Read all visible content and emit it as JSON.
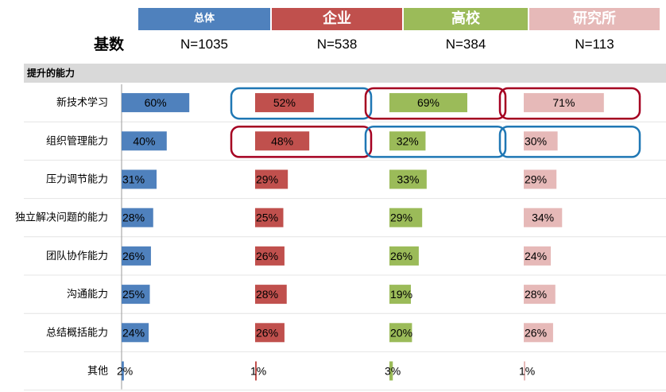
{
  "chart_data": {
    "type": "bar",
    "title": "",
    "section_label": "提升的能力",
    "base_label": "基数",
    "groups": [
      {
        "name": "总体",
        "n": "N=1035",
        "color": "#4f81bd"
      },
      {
        "name": "企业",
        "n": "N=538",
        "color": "#c0504d"
      },
      {
        "name": "高校",
        "n": "N=384",
        "color": "#9bbb59"
      },
      {
        "name": "研究所",
        "n": "N=113",
        "color": "#e6b9b8"
      }
    ],
    "categories": [
      "新技术学习",
      "组织管理能力",
      "压力调节能力",
      "独立解决问题的能力",
      "团队协作能力",
      "沟通能力",
      "总结概括能力",
      "其他"
    ],
    "series": [
      {
        "name": "总体",
        "values": [
          60,
          40,
          31,
          28,
          26,
          25,
          24,
          2
        ]
      },
      {
        "name": "企业",
        "values": [
          52,
          48,
          29,
          25,
          26,
          28,
          26,
          1
        ]
      },
      {
        "name": "高校",
        "values": [
          69,
          32,
          33,
          29,
          26,
          19,
          20,
          3
        ]
      },
      {
        "name": "研究所",
        "values": [
          71,
          30,
          29,
          34,
          24,
          28,
          26,
          1
        ]
      }
    ],
    "value_labels": [
      [
        "60%",
        "40%",
        "31%",
        "28%",
        "26%",
        "25%",
        "24%",
        "2%"
      ],
      [
        "52%",
        "48%",
        "29%",
        "25%",
        "26%",
        "28%",
        "26%",
        "1%"
      ],
      [
        "69%",
        "32%",
        "33%",
        "29%",
        "26%",
        "19%",
        "20%",
        "3%"
      ],
      [
        "71%",
        "30%",
        "29%",
        "34%",
        "24%",
        "28%",
        "26%",
        "1%"
      ]
    ],
    "highlight_boxes": [
      {
        "group": 1,
        "row": 0,
        "color": "#1f77b4"
      },
      {
        "group": 2,
        "row": 0,
        "color": "#a50021"
      },
      {
        "group": 3,
        "row": 0,
        "color": "#a50021"
      },
      {
        "group": 1,
        "row": 1,
        "color": "#a50021"
      },
      {
        "group": 2,
        "row": 1,
        "color": "#1f77b4"
      },
      {
        "group": 3,
        "row": 1,
        "color": "#1f77b4"
      }
    ],
    "grid_lines": true,
    "legend": "none"
  }
}
